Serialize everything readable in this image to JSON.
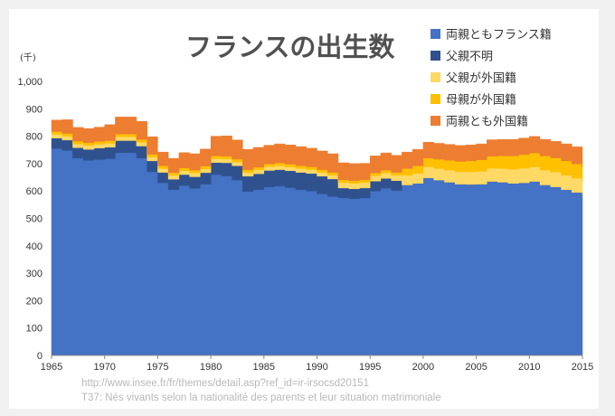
{
  "chart_data": {
    "type": "area",
    "title": "フランスの出生数",
    "ylabel": "(千)",
    "xlabel": "",
    "ylim": [
      0,
      1000
    ],
    "yticks": [
      "0",
      "100",
      "200",
      "300",
      "400",
      "500",
      "600",
      "700",
      "800",
      "900",
      "1,000"
    ],
    "xlim": [
      1965,
      2015
    ],
    "xticks": [
      "1965",
      "1970",
      "1975",
      "1980",
      "1985",
      "1990",
      "1995",
      "2000",
      "2005",
      "2010",
      "2015"
    ],
    "legend_position": "top-right",
    "grid": false,
    "x": [
      1965,
      1966,
      1967,
      1968,
      1969,
      1970,
      1971,
      1972,
      1973,
      1974,
      1975,
      1976,
      1977,
      1978,
      1979,
      1980,
      1981,
      1982,
      1983,
      1984,
      1985,
      1986,
      1987,
      1988,
      1989,
      1990,
      1991,
      1992,
      1993,
      1994,
      1995,
      1996,
      1997,
      1998,
      1999,
      2000,
      2001,
      2002,
      2003,
      2004,
      2005,
      2006,
      2007,
      2008,
      2009,
      2010,
      2011,
      2012,
      2013,
      2014,
      2015
    ],
    "series": [
      {
        "name": "両親ともフランス籍",
        "color": "#4472c4",
        "values": [
          755,
          748,
          720,
          712,
          715,
          718,
          740,
          740,
          720,
          670,
          630,
          605,
          620,
          610,
          625,
          660,
          655,
          640,
          598,
          605,
          615,
          618,
          612,
          605,
          600,
          590,
          580,
          575,
          572,
          575,
          600,
          610,
          602,
          622,
          628,
          648,
          640,
          632,
          625,
          624,
          625,
          635,
          632,
          628,
          630,
          635,
          622,
          615,
          605,
          595,
          585
        ]
      },
      {
        "name": "父親不明",
        "color": "#2f528f",
        "values": [
          38,
          38,
          38,
          40,
          42,
          42,
          44,
          44,
          44,
          40,
          38,
          38,
          40,
          42,
          42,
          44,
          48,
          52,
          56,
          58,
          60,
          60,
          62,
          63,
          64,
          64,
          64,
          36,
          36,
          36,
          36,
          36,
          36,
          0,
          0,
          0,
          0,
          0,
          0,
          0,
          0,
          0,
          0,
          0,
          0,
          0,
          0,
          0,
          0,
          0,
          0
        ]
      },
      {
        "name": "父親が外国籍",
        "color": "#ffd966",
        "values": [
          14,
          14,
          14,
          14,
          14,
          14,
          14,
          14,
          14,
          14,
          14,
          14,
          14,
          14,
          14,
          14,
          14,
          14,
          14,
          14,
          14,
          14,
          14,
          14,
          14,
          14,
          14,
          20,
          20,
          20,
          20,
          20,
          20,
          35,
          36,
          40,
          42,
          44,
          45,
          46,
          47,
          48,
          50,
          52,
          53,
          53,
          54,
          54,
          53,
          52,
          50
        ]
      },
      {
        "name": "母親が外国籍",
        "color": "#ffc000",
        "values": [
          10,
          10,
          10,
          10,
          10,
          10,
          10,
          10,
          10,
          10,
          10,
          10,
          10,
          10,
          10,
          10,
          10,
          10,
          10,
          10,
          10,
          10,
          10,
          10,
          10,
          10,
          10,
          10,
          10,
          10,
          10,
          10,
          10,
          25,
          28,
          32,
          34,
          36,
          38,
          40,
          42,
          44,
          46,
          48,
          50,
          51,
          52,
          52,
          52,
          52,
          52
        ]
      },
      {
        "name": "両親とも外国籍",
        "color": "#ed7d31",
        "values": [
          42,
          50,
          50,
          52,
          52,
          58,
          62,
          62,
          66,
          64,
          50,
          52,
          56,
          60,
          62,
          72,
          74,
          70,
          74,
          72,
          68,
          70,
          70,
          70,
          68,
          68,
          68,
          62,
          62,
          60,
          62,
          63,
          62,
          60,
          60,
          58,
          58,
          58,
          58,
          58,
          58,
          60,
          60,
          60,
          60,
          60,
          60,
          60,
          62,
          62,
          62
        ]
      }
    ]
  },
  "source": {
    "url": "http://www.insee.fr/fr/themes/detail.asp?ref_id=ir-irsocsd20151",
    "caption": "T37: Nés vivants selon la nationalité des parents et leur situation matrimoniale"
  }
}
